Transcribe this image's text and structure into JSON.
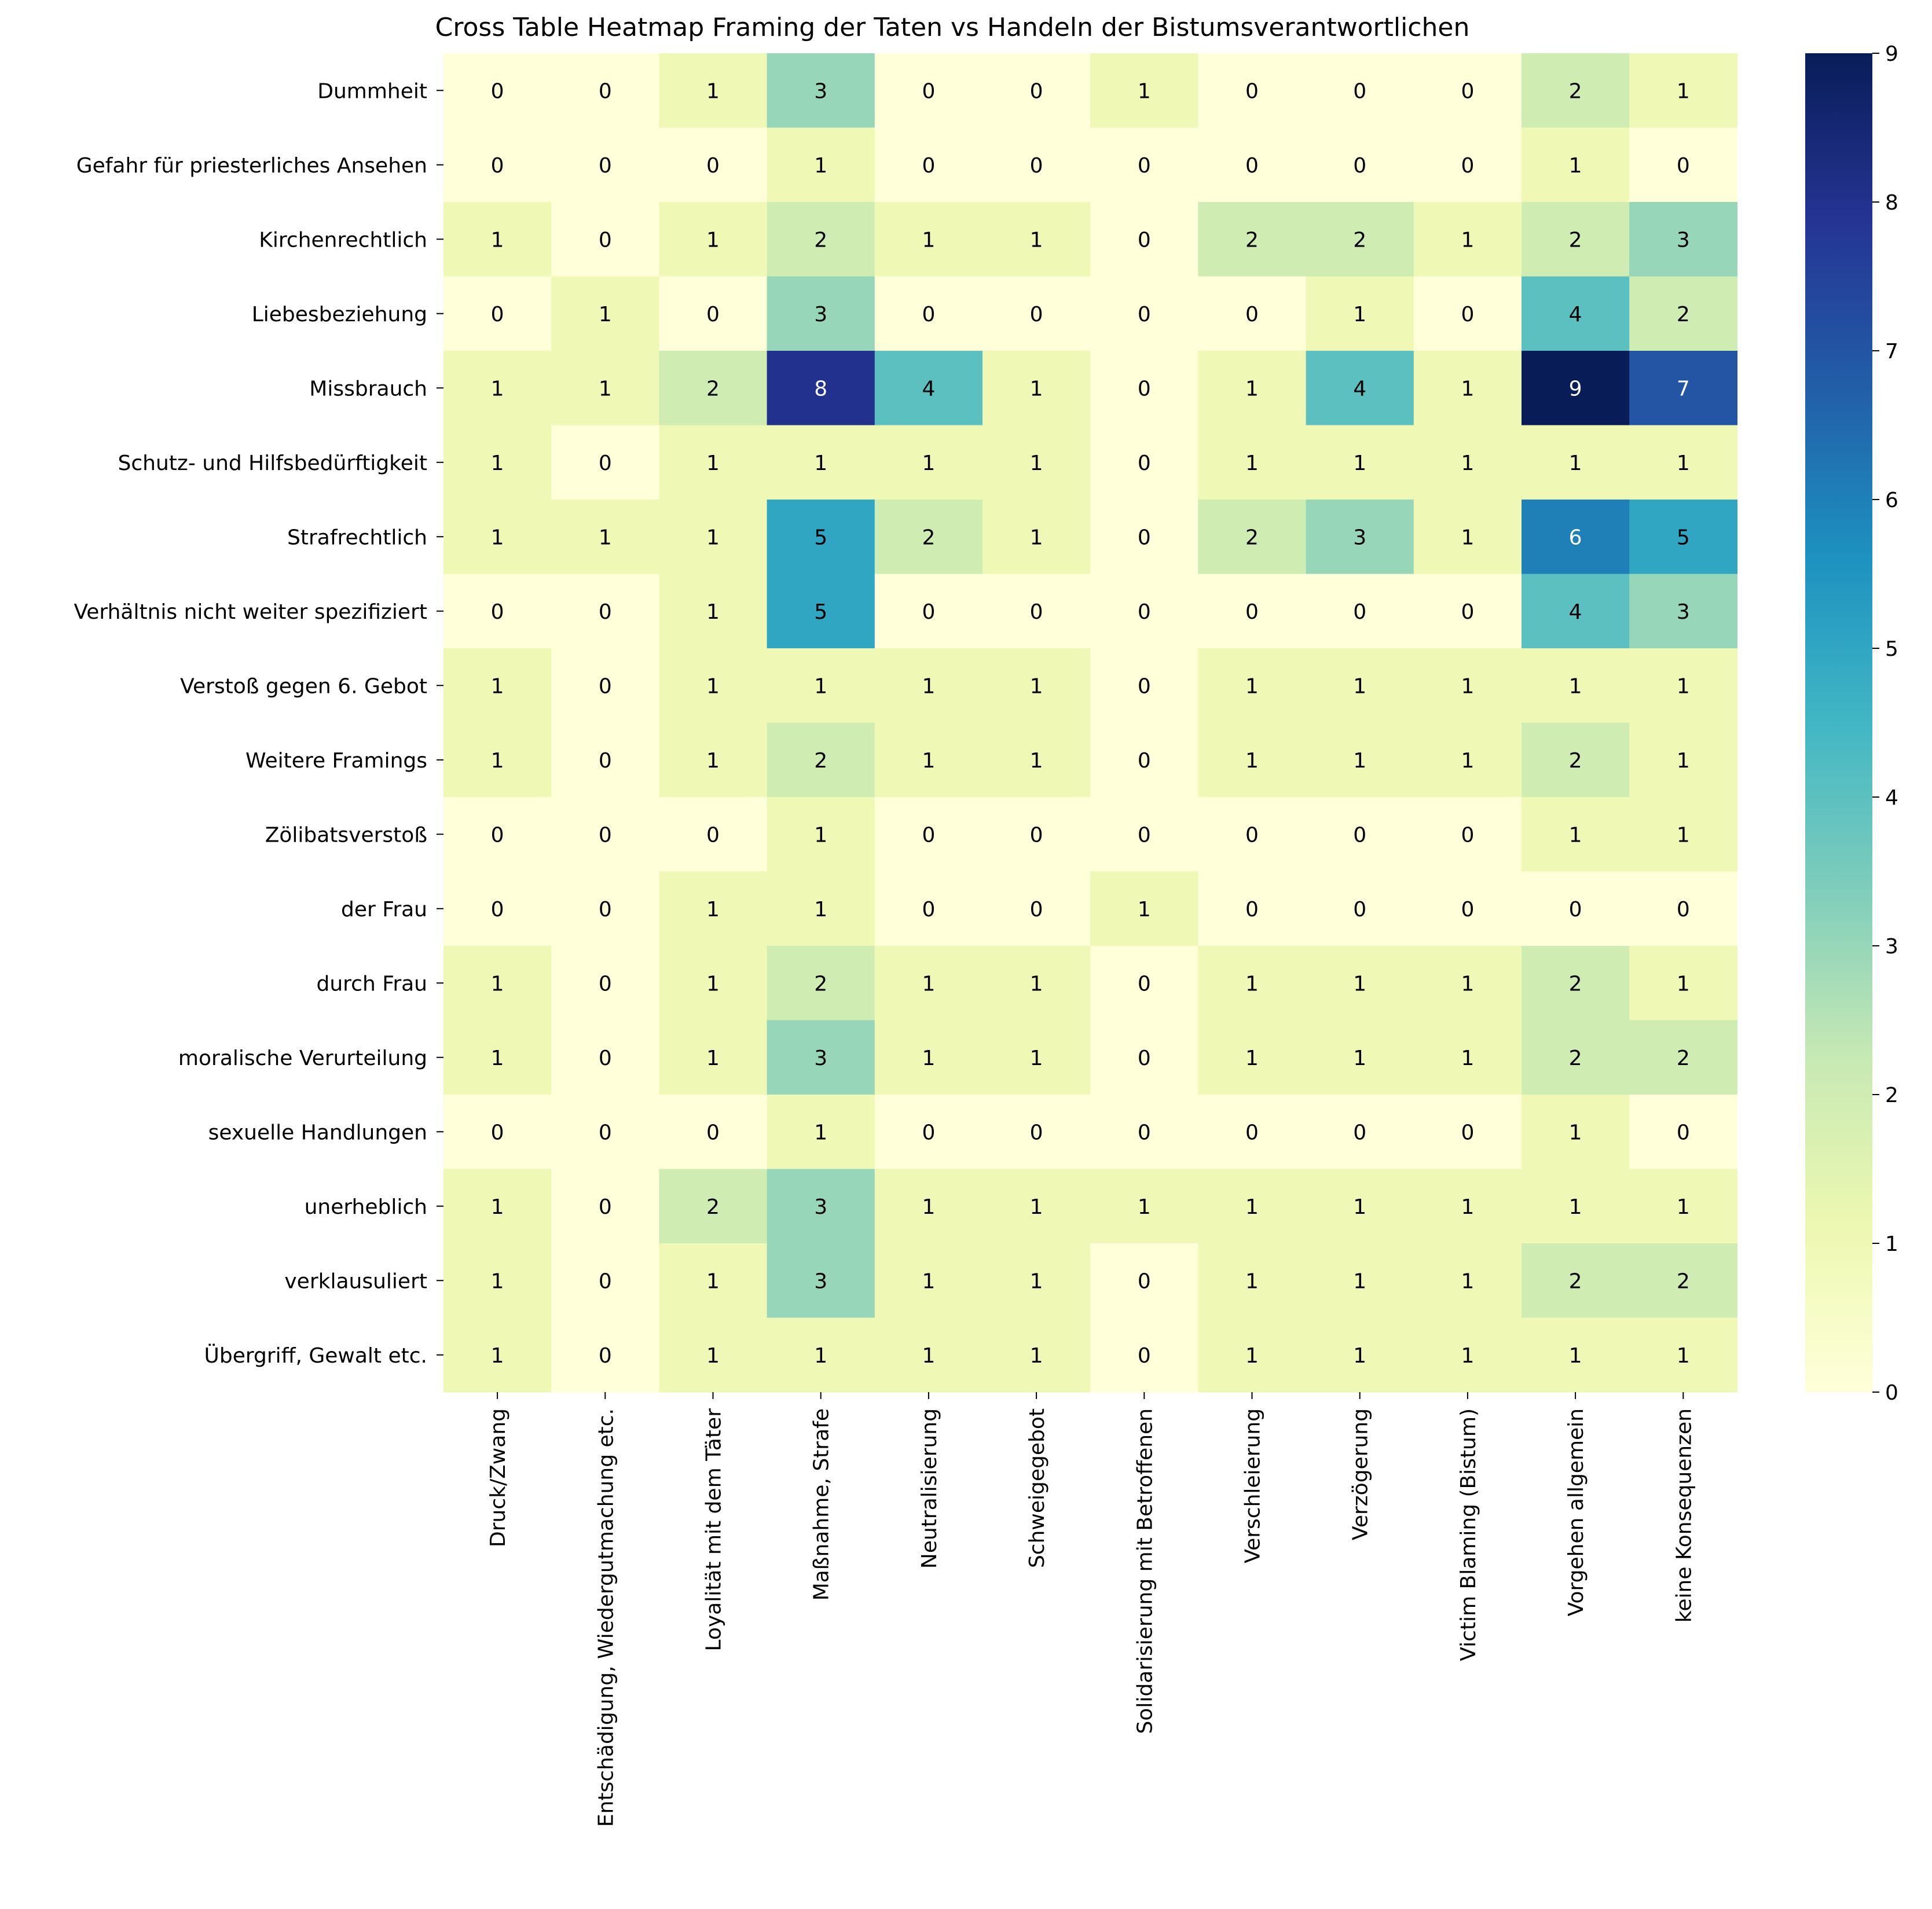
{
  "chart_data": {
    "type": "heatmap",
    "title": "Cross Table Heatmap Framing der Taten vs Handeln der Bistumsverantwortlichen",
    "xlabel": "",
    "ylabel": "",
    "rows": [
      "Dummheit",
      "Gefahr für priesterliches Ansehen",
      "Kirchenrechtlich",
      "Liebesbeziehung",
      "Missbrauch",
      "Schutz- und Hilfsbedürftigkeit",
      "Strafrechtlich",
      "Verhältnis nicht weiter spezifiziert",
      "Verstoß gegen 6. Gebot",
      "Weitere Framings",
      "Zölibatsverstoß",
      "der Frau",
      "durch Frau",
      "moralische Verurteilung",
      "sexuelle Handlungen",
      "unerheblich",
      "verklausuliert",
      "Übergriff, Gewalt etc."
    ],
    "columns": [
      "Druck/Zwang",
      "Entschädigung, Wiedergutmachung etc.",
      "Loyalität mit dem Täter",
      "Maßnahme, Strafe",
      "Neutralisierung",
      "Schweigegebot",
      "Solidarisierung mit Betroffenen",
      "Verschleierung",
      "Verzögerung",
      "Victim Blaming (Bistum)",
      "Vorgehen allgemein",
      "keine Konsequenzen"
    ],
    "values": [
      [
        0,
        0,
        1,
        3,
        0,
        0,
        1,
        0,
        0,
        0,
        2,
        1
      ],
      [
        0,
        0,
        0,
        1,
        0,
        0,
        0,
        0,
        0,
        0,
        1,
        0
      ],
      [
        1,
        0,
        1,
        2,
        1,
        1,
        0,
        2,
        2,
        1,
        2,
        3
      ],
      [
        0,
        1,
        0,
        3,
        0,
        0,
        0,
        0,
        1,
        0,
        4,
        2
      ],
      [
        1,
        1,
        2,
        8,
        4,
        1,
        0,
        1,
        4,
        1,
        9,
        7
      ],
      [
        1,
        0,
        1,
        1,
        1,
        1,
        0,
        1,
        1,
        1,
        1,
        1
      ],
      [
        1,
        1,
        1,
        5,
        2,
        1,
        0,
        2,
        3,
        1,
        6,
        5
      ],
      [
        0,
        0,
        1,
        5,
        0,
        0,
        0,
        0,
        0,
        0,
        4,
        3
      ],
      [
        1,
        0,
        1,
        1,
        1,
        1,
        0,
        1,
        1,
        1,
        1,
        1
      ],
      [
        1,
        0,
        1,
        2,
        1,
        1,
        0,
        1,
        1,
        1,
        2,
        1
      ],
      [
        0,
        0,
        0,
        1,
        0,
        0,
        0,
        0,
        0,
        0,
        1,
        1
      ],
      [
        0,
        0,
        1,
        1,
        0,
        0,
        1,
        0,
        0,
        0,
        0,
        0
      ],
      [
        1,
        0,
        1,
        2,
        1,
        1,
        0,
        1,
        1,
        1,
        2,
        1
      ],
      [
        1,
        0,
        1,
        3,
        1,
        1,
        0,
        1,
        1,
        1,
        2,
        2
      ],
      [
        0,
        0,
        0,
        1,
        0,
        0,
        0,
        0,
        0,
        0,
        1,
        0
      ],
      [
        1,
        0,
        2,
        3,
        1,
        1,
        1,
        1,
        1,
        1,
        1,
        1
      ],
      [
        1,
        0,
        1,
        3,
        1,
        1,
        0,
        1,
        1,
        1,
        2,
        2
      ],
      [
        1,
        0,
        1,
        1,
        1,
        1,
        0,
        1,
        1,
        1,
        1,
        1
      ]
    ],
    "vmin": 0,
    "vmax": 9,
    "colormap": "YlGnBu",
    "colorbar_ticks": [
      0,
      1,
      2,
      3,
      4,
      5,
      6,
      7,
      8,
      9
    ],
    "annotate": true
  }
}
